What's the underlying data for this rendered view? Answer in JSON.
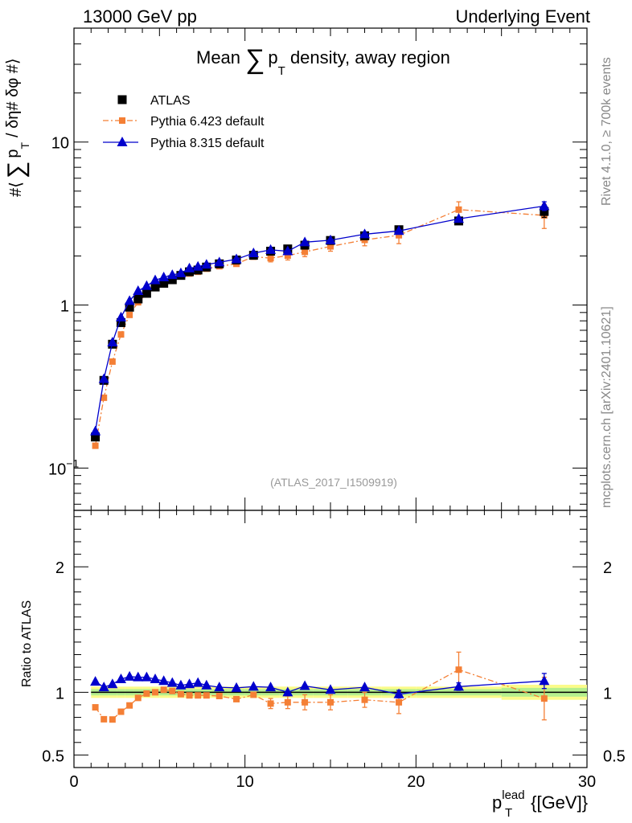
{
  "header": {
    "left": "13000 GeV pp",
    "right": "Underlying Event"
  },
  "side_labels": {
    "rivet": "Rivet 4.1.0, ≥ 700k events",
    "mcplots": "mcplots.cern.ch [arXiv:2401.10621]"
  },
  "chart_data": [
    {
      "type": "scatter",
      "panel": "main",
      "title": "Mean ∑ pT density, away region",
      "title_parts": {
        "pre": "Mean ",
        "sum": "∑",
        "p": "p",
        "sub": "T",
        "post": " density, away region"
      },
      "ylabel": "#⟨ ∑ pT / δη# δφ #⟩",
      "ylabel_parts": {
        "open": "#⟨",
        "sum": "∑",
        "p": "p",
        "sub": "T",
        "close": "/ δη# δφ #⟩"
      },
      "yscale": "log",
      "xlim": [
        0,
        30
      ],
      "ylim": [
        0.055,
        50
      ],
      "y_ticks": [
        {
          "value": 0.1,
          "label": "10",
          "sup": "−1"
        },
        {
          "value": 1,
          "label": "1",
          "sup": ""
        },
        {
          "value": 10,
          "label": "10",
          "sup": ""
        }
      ],
      "watermark": "(ATLAS_2017_I1509919)",
      "legend_position": "top-left",
      "series": [
        {
          "name": "ATLAS",
          "color": "#000000",
          "marker": "square",
          "line": "none",
          "x": [
            1.25,
            1.75,
            2.25,
            2.75,
            3.25,
            3.75,
            4.25,
            4.75,
            5.25,
            5.75,
            6.25,
            6.75,
            7.25,
            7.75,
            8.5,
            9.5,
            10.5,
            11.5,
            12.5,
            13.5,
            15,
            17,
            19,
            22.5,
            27.5
          ],
          "y": [
            0.155,
            0.345,
            0.575,
            0.78,
            0.97,
            1.09,
            1.18,
            1.29,
            1.36,
            1.43,
            1.52,
            1.6,
            1.64,
            1.71,
            1.79,
            1.89,
            2.02,
            2.14,
            2.21,
            2.33,
            2.49,
            2.66,
            2.9,
            3.28,
            3.75
          ],
          "err": [
            0,
            0,
            0,
            0,
            0,
            0,
            0,
            0,
            0,
            0,
            0,
            0,
            0,
            0,
            0,
            0,
            0,
            0,
            0,
            0,
            0,
            0,
            0,
            0,
            0.3
          ]
        },
        {
          "name": "Pythia 6.423 default",
          "color": "#f47f35",
          "marker": "square-small",
          "line": "dashdot",
          "x": [
            1.25,
            1.75,
            2.25,
            2.75,
            3.25,
            3.75,
            4.25,
            4.75,
            5.25,
            5.75,
            6.25,
            6.75,
            7.25,
            7.75,
            8.5,
            9.5,
            10.5,
            11.5,
            12.5,
            13.5,
            15,
            17,
            19,
            22.5,
            27.5
          ],
          "y": [
            0.137,
            0.27,
            0.45,
            0.66,
            0.87,
            1.04,
            1.17,
            1.28,
            1.39,
            1.45,
            1.52,
            1.56,
            1.6,
            1.67,
            1.73,
            1.79,
            1.98,
            1.94,
            2.01,
            2.12,
            2.29,
            2.51,
            2.68,
            3.85,
            3.55
          ],
          "err": [
            0,
            0,
            0,
            0,
            0,
            0,
            0,
            0,
            0,
            0,
            0,
            0,
            0,
            0,
            0,
            0,
            0,
            0.1,
            0.12,
            0.14,
            0.15,
            0.2,
            0.3,
            0.45,
            0.6
          ]
        },
        {
          "name": "Pythia 8.315 default",
          "color": "#0000cc",
          "marker": "triangle",
          "line": "solid",
          "x": [
            1.25,
            1.75,
            2.25,
            2.75,
            3.25,
            3.75,
            4.25,
            4.75,
            5.25,
            5.75,
            6.25,
            6.75,
            7.25,
            7.75,
            8.5,
            9.5,
            10.5,
            11.5,
            12.5,
            13.5,
            15,
            17,
            19,
            22.5,
            27.5
          ],
          "y": [
            0.168,
            0.352,
            0.59,
            0.84,
            1.06,
            1.22,
            1.31,
            1.42,
            1.48,
            1.53,
            1.57,
            1.68,
            1.72,
            1.77,
            1.83,
            1.91,
            2.08,
            2.18,
            2.14,
            2.43,
            2.5,
            2.72,
            2.85,
            3.38,
            4.05
          ],
          "err": [
            0,
            0,
            0,
            0,
            0,
            0,
            0,
            0,
            0,
            0,
            0,
            0,
            0,
            0,
            0,
            0,
            0,
            0,
            0,
            0,
            0,
            0,
            0,
            0,
            0.25
          ]
        }
      ]
    },
    {
      "type": "scatter",
      "panel": "ratio",
      "xlabel": "pT lead {[GeV]}",
      "xlabel_parts": {
        "p": "p",
        "sub": "T",
        "sup": "lead",
        "unit": " {[GeV]}"
      },
      "ylabel": "Ratio to ATLAS",
      "xlim": [
        0,
        30
      ],
      "ylim": [
        0.4,
        2.45
      ],
      "x_ticks": [
        0,
        10,
        20,
        30
      ],
      "y_ticks": [
        0.5,
        1,
        2
      ],
      "reference_line": 1,
      "band_edges": [
        1,
        1.5,
        2,
        2.5,
        3,
        3.5,
        4,
        4.5,
        5,
        5.5,
        6,
        6.5,
        7,
        7.5,
        8,
        9,
        10,
        11,
        12,
        13,
        14,
        16,
        18,
        20,
        25,
        30
      ],
      "band_outer": [
        0.045,
        0.045,
        0.045,
        0.045,
        0.045,
        0.045,
        0.045,
        0.045,
        0.045,
        0.045,
        0.045,
        0.045,
        0.045,
        0.045,
        0.045,
        0.045,
        0.045,
        0.045,
        0.045,
        0.045,
        0.045,
        0.045,
        0.045,
        0.045,
        0.06
      ],
      "band_inner": [
        0.025,
        0.025,
        0.025,
        0.025,
        0.025,
        0.025,
        0.025,
        0.025,
        0.025,
        0.025,
        0.025,
        0.025,
        0.025,
        0.025,
        0.025,
        0.025,
        0.025,
        0.025,
        0.025,
        0.025,
        0.025,
        0.025,
        0.025,
        0.025,
        0.035
      ],
      "band_colors": {
        "outer": "#fbfb8a",
        "inner": "#b5ef8e"
      },
      "series": [
        {
          "name": "Pythia 6.423 default",
          "color": "#f47f35",
          "marker": "square-small",
          "line": "dashdot",
          "x": [
            1.25,
            1.75,
            2.25,
            2.75,
            3.25,
            3.75,
            4.25,
            4.75,
            5.25,
            5.75,
            6.25,
            6.75,
            7.25,
            7.75,
            8.5,
            9.5,
            10.5,
            11.5,
            12.5,
            13.5,
            15,
            17,
            19,
            22.5,
            27.5
          ],
          "y": [
            0.88,
            0.785,
            0.783,
            0.845,
            0.895,
            0.955,
            0.99,
            1.0,
            1.02,
            1.01,
            0.985,
            0.975,
            0.975,
            0.975,
            0.97,
            0.945,
            0.98,
            0.91,
            0.92,
            0.92,
            0.92,
            0.94,
            0.92,
            1.18,
            0.95
          ],
          "err": [
            0,
            0,
            0,
            0,
            0,
            0,
            0,
            0,
            0,
            0,
            0,
            0,
            0,
            0,
            0,
            0,
            0,
            0.04,
            0.05,
            0.06,
            0.06,
            0.06,
            0.09,
            0.14,
            0.17
          ]
        },
        {
          "name": "Pythia 8.315 default",
          "color": "#0000cc",
          "marker": "triangle",
          "line": "solid",
          "x": [
            1.25,
            1.75,
            2.25,
            2.75,
            3.25,
            3.75,
            4.25,
            4.75,
            5.25,
            5.75,
            6.25,
            6.75,
            7.25,
            7.75,
            8.5,
            9.5,
            10.5,
            11.5,
            12.5,
            13.5,
            15,
            17,
            19,
            22.5,
            27.5
          ],
          "y": [
            1.085,
            1.04,
            1.065,
            1.105,
            1.125,
            1.12,
            1.12,
            1.105,
            1.09,
            1.075,
            1.055,
            1.065,
            1.075,
            1.055,
            1.04,
            1.035,
            1.045,
            1.04,
            1.0,
            1.05,
            1.02,
            1.04,
            0.985,
            1.045,
            1.09
          ],
          "err": [
            0,
            0,
            0,
            0,
            0,
            0,
            0,
            0,
            0,
            0,
            0,
            0,
            0,
            0,
            0,
            0,
            0,
            0,
            0,
            0,
            0,
            0,
            0.03,
            0.03,
            0.06
          ]
        }
      ]
    }
  ]
}
